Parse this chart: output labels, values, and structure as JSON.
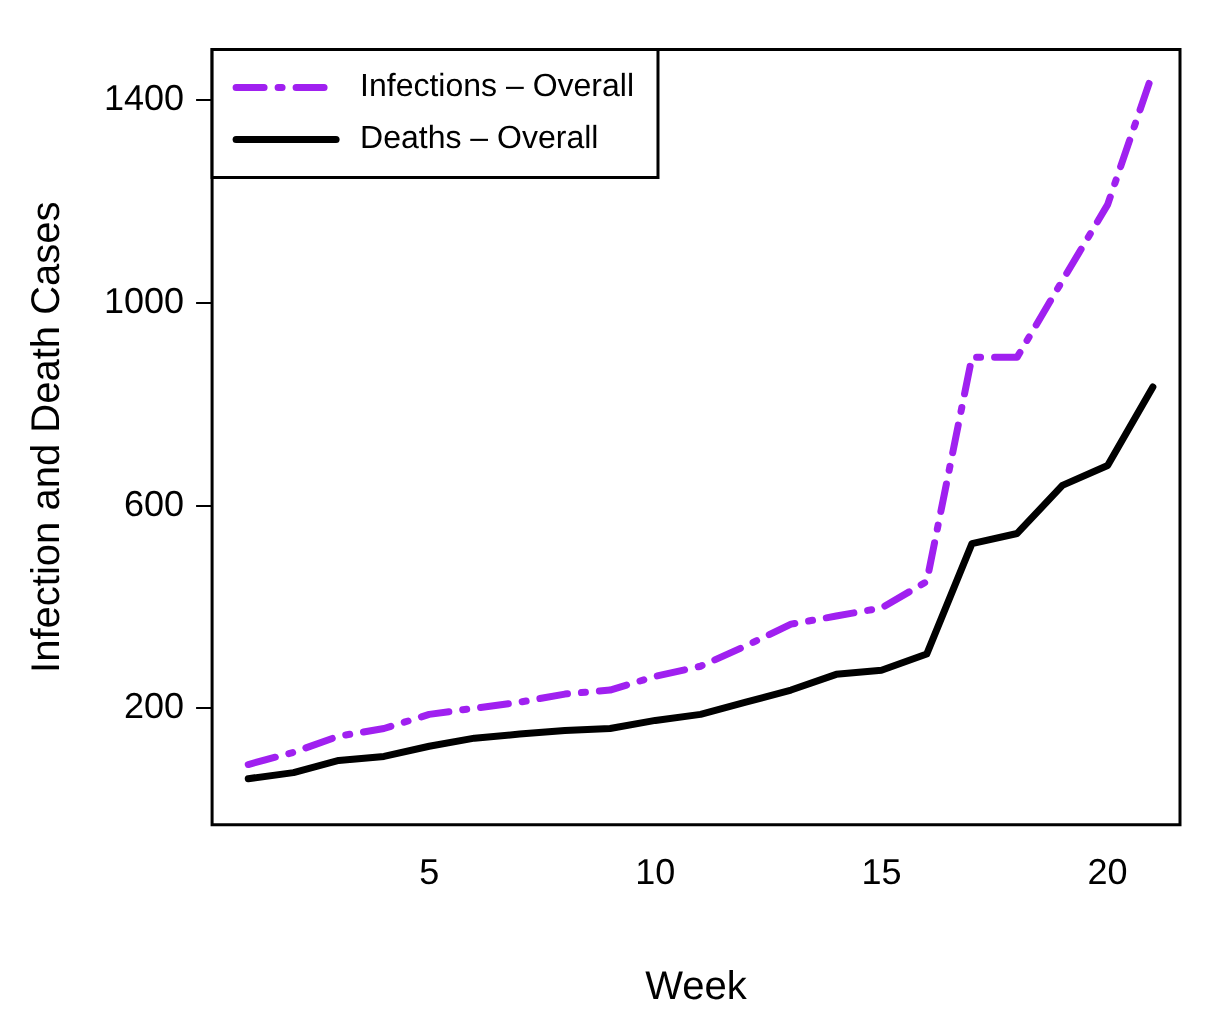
{
  "chart_data": {
    "type": "line",
    "xlabel": "Week",
    "ylabel": "Infection and Death Cases",
    "x": [
      1,
      2,
      3,
      4,
      5,
      6,
      7,
      8,
      9,
      10,
      11,
      12,
      13,
      14,
      15,
      16,
      17,
      18,
      19,
      20,
      21
    ],
    "series": [
      {
        "name": "Infections – Overall",
        "color": "#a020f0",
        "line_style": "dashed",
        "values": [
          89,
          113,
          145,
          160,
          188,
          200,
          212,
          228,
          236,
          263,
          283,
          323,
          366,
          382,
          398,
          450,
          893,
          893,
          1044,
          1194,
          1455
        ]
      },
      {
        "name": "Deaths – Overall",
        "color": "#000000",
        "line_style": "solid",
        "values": [
          61,
          73,
          97,
          105,
          125,
          141,
          149,
          156,
          160,
          176,
          188,
          212,
          236,
          267,
          275,
          307,
          525,
          545,
          640,
          679,
          834
        ]
      }
    ],
    "xlim": [
      0.2,
      21.6
    ],
    "xticks": [
      5,
      10,
      15,
      20
    ],
    "ylim": [
      -30,
      1500
    ],
    "yticks": [
      200,
      600,
      1000,
      1400
    ],
    "grid": false,
    "legend": "top left",
    "marker": "none"
  }
}
